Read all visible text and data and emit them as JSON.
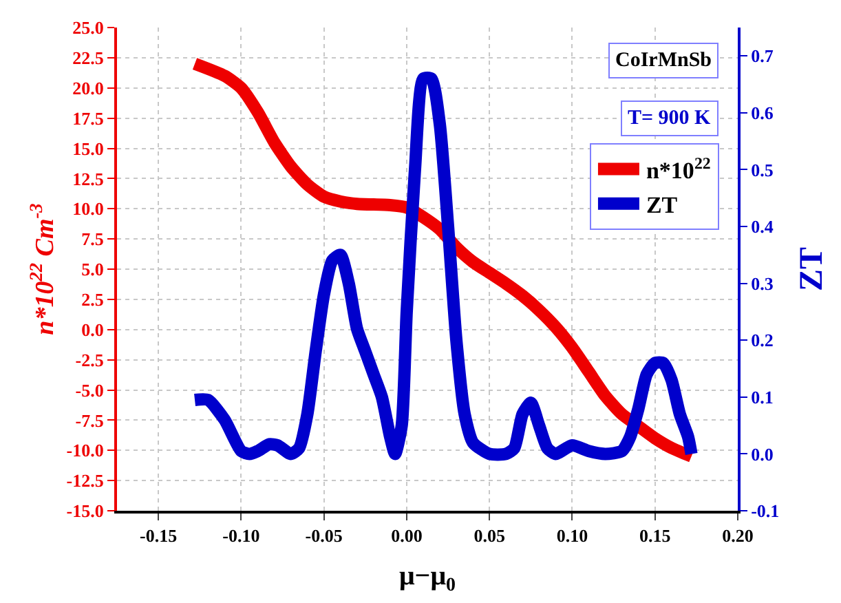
{
  "chart_data": {
    "type": "line",
    "xlabel": "μ−μ$_{0}$",
    "ylabel": "n*10$^{22}$ Cm$^{-3}$",
    "y2label": "ZT",
    "annotations": [
      "CoIrMnSb",
      "T= 900 K"
    ],
    "xlim": [
      -0.175,
      0.2
    ],
    "xticks": [
      -0.15,
      {
        "value": -0.1,
        "label": "-0.10"
      },
      -0.05,
      {
        "value": 0,
        "label": "0.00"
      },
      0.05,
      {
        "value": 0.1,
        "label": "0.10"
      },
      0.15,
      {
        "value": 0.2,
        "label": "0.20"
      }
    ],
    "ylim": [
      -15,
      25
    ],
    "yticks": [
      {
        "value": -15,
        "label": "-15.0"
      },
      -12.5,
      {
        "value": -10,
        "label": "-10.0"
      },
      -7.5,
      {
        "value": -5,
        "label": "-5.0"
      },
      -2.5,
      {
        "value": 0,
        "label": "0.0"
      },
      2.5,
      {
        "value": 5,
        "label": "5.0"
      },
      7.5,
      {
        "value": 10,
        "label": "10.0"
      },
      12.5,
      {
        "value": 15,
        "label": "15.0"
      },
      17.5,
      {
        "value": 20,
        "label": "20.0"
      },
      22.5,
      {
        "value": 25,
        "label": "25.0"
      }
    ],
    "y2lim": [
      -0.1,
      0.75
    ],
    "y2ticks": [
      -0.1,
      {
        "value": 0,
        "label": "0.0"
      },
      0.1,
      0.2,
      0.3,
      0.4,
      0.5,
      0.6,
      0.7
    ],
    "grid": true,
    "legend": "top right",
    "line_style": "solid",
    "series": [
      {
        "name": "n*10$^{22}$",
        "color": "#ee0000",
        "x": [
          -0.128,
          -0.11,
          -0.1,
          -0.09,
          -0.08,
          -0.07,
          -0.06,
          -0.05,
          -0.04,
          -0.03,
          -0.01,
          0.0,
          0.01,
          0.02,
          0.03,
          0.04,
          0.05,
          0.06,
          0.07,
          0.08,
          0.09,
          0.1,
          0.11,
          0.12,
          0.13,
          0.14,
          0.15,
          0.16,
          0.172
        ],
        "values": [
          22.0,
          21.0,
          20.0,
          18.0,
          15.5,
          13.5,
          12.0,
          11.0,
          10.6,
          10.4,
          10.3,
          10.1,
          9.3,
          8.3,
          6.8,
          5.6,
          4.7,
          3.8,
          2.8,
          1.6,
          0.2,
          -1.5,
          -3.5,
          -5.5,
          -7.0,
          -8.0,
          -9.0,
          -9.8,
          -10.5
        ]
      },
      {
        "name": "ZT",
        "color": "#0000cc",
        "axis": "y2",
        "x": [
          -0.128,
          -0.12,
          -0.11,
          -0.1,
          -0.095,
          -0.09,
          -0.083,
          -0.078,
          -0.07,
          -0.065,
          -0.06,
          -0.055,
          -0.05,
          -0.045,
          -0.04,
          -0.035,
          -0.03,
          -0.025,
          -0.02,
          -0.015,
          -0.01,
          -0.007,
          -0.003,
          0.0,
          0.005,
          0.01,
          0.015,
          0.02,
          0.025,
          0.03,
          0.035,
          0.04,
          0.05,
          0.06,
          0.065,
          0.07,
          0.075,
          0.08,
          0.085,
          0.09,
          0.1,
          0.11,
          0.12,
          0.13,
          0.135,
          0.14,
          0.145,
          0.15,
          0.155,
          0.16,
          0.165,
          0.17,
          0.172
        ],
        "values": [
          0.095,
          0.095,
          0.06,
          0.005,
          0.0,
          0.005,
          0.017,
          0.015,
          0.0,
          0.01,
          0.07,
          0.18,
          0.28,
          0.34,
          0.35,
          0.3,
          0.22,
          0.18,
          0.14,
          0.1,
          0.03,
          0.0,
          0.05,
          0.25,
          0.5,
          0.66,
          0.66,
          0.58,
          0.4,
          0.2,
          0.07,
          0.02,
          0.0,
          0.0,
          0.01,
          0.07,
          0.09,
          0.05,
          0.01,
          0.0,
          0.015,
          0.005,
          0.0,
          0.005,
          0.03,
          0.08,
          0.14,
          0.16,
          0.16,
          0.13,
          0.07,
          0.03,
          0.0
        ]
      }
    ]
  }
}
